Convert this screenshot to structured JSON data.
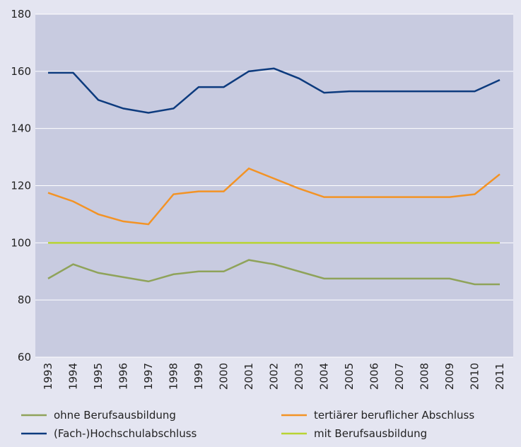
{
  "chart_data": {
    "type": "line",
    "categories": [
      "1993",
      "1994",
      "1995",
      "1996",
      "1997",
      "1998",
      "1999",
      "2000",
      "2001",
      "2002",
      "2003",
      "2004",
      "2005",
      "2006",
      "2007",
      "2008",
      "2009",
      "2010",
      "2011"
    ],
    "series": [
      {
        "name": "ohne Berufsausbildung",
        "color": "#8fa35a",
        "values": [
          87.5,
          92.5,
          89.5,
          88,
          86.5,
          89,
          90,
          90,
          94,
          92.5,
          90,
          87.5,
          87.5,
          87.5,
          87.5,
          87.5,
          87.5,
          85.5,
          85.5
        ]
      },
      {
        "name": "tertiärer beruflicher Abschluss",
        "color": "#f39325",
        "values": [
          117.5,
          114.5,
          110,
          107.5,
          106.5,
          117,
          118,
          118,
          126,
          122.5,
          119,
          116,
          116,
          116,
          116,
          116,
          116,
          117,
          124
        ]
      },
      {
        "name": "(Fach-)Hochschulabschluss",
        "color": "#0d3b7e",
        "values": [
          159.5,
          159.5,
          150,
          147,
          145.5,
          147,
          154.5,
          154.5,
          160,
          161,
          157.5,
          152.5,
          153,
          153,
          153,
          153,
          153,
          153,
          157
        ]
      },
      {
        "name": "mit Berufsausbildung",
        "color": "#b8d433",
        "values": [
          100,
          100,
          100,
          100,
          100,
          100,
          100,
          100,
          100,
          100,
          100,
          100,
          100,
          100,
          100,
          100,
          100,
          100,
          100
        ]
      }
    ],
    "ylim": [
      60,
      180
    ],
    "yticks": [
      60,
      80,
      100,
      120,
      140,
      160,
      180
    ],
    "grid": true
  }
}
